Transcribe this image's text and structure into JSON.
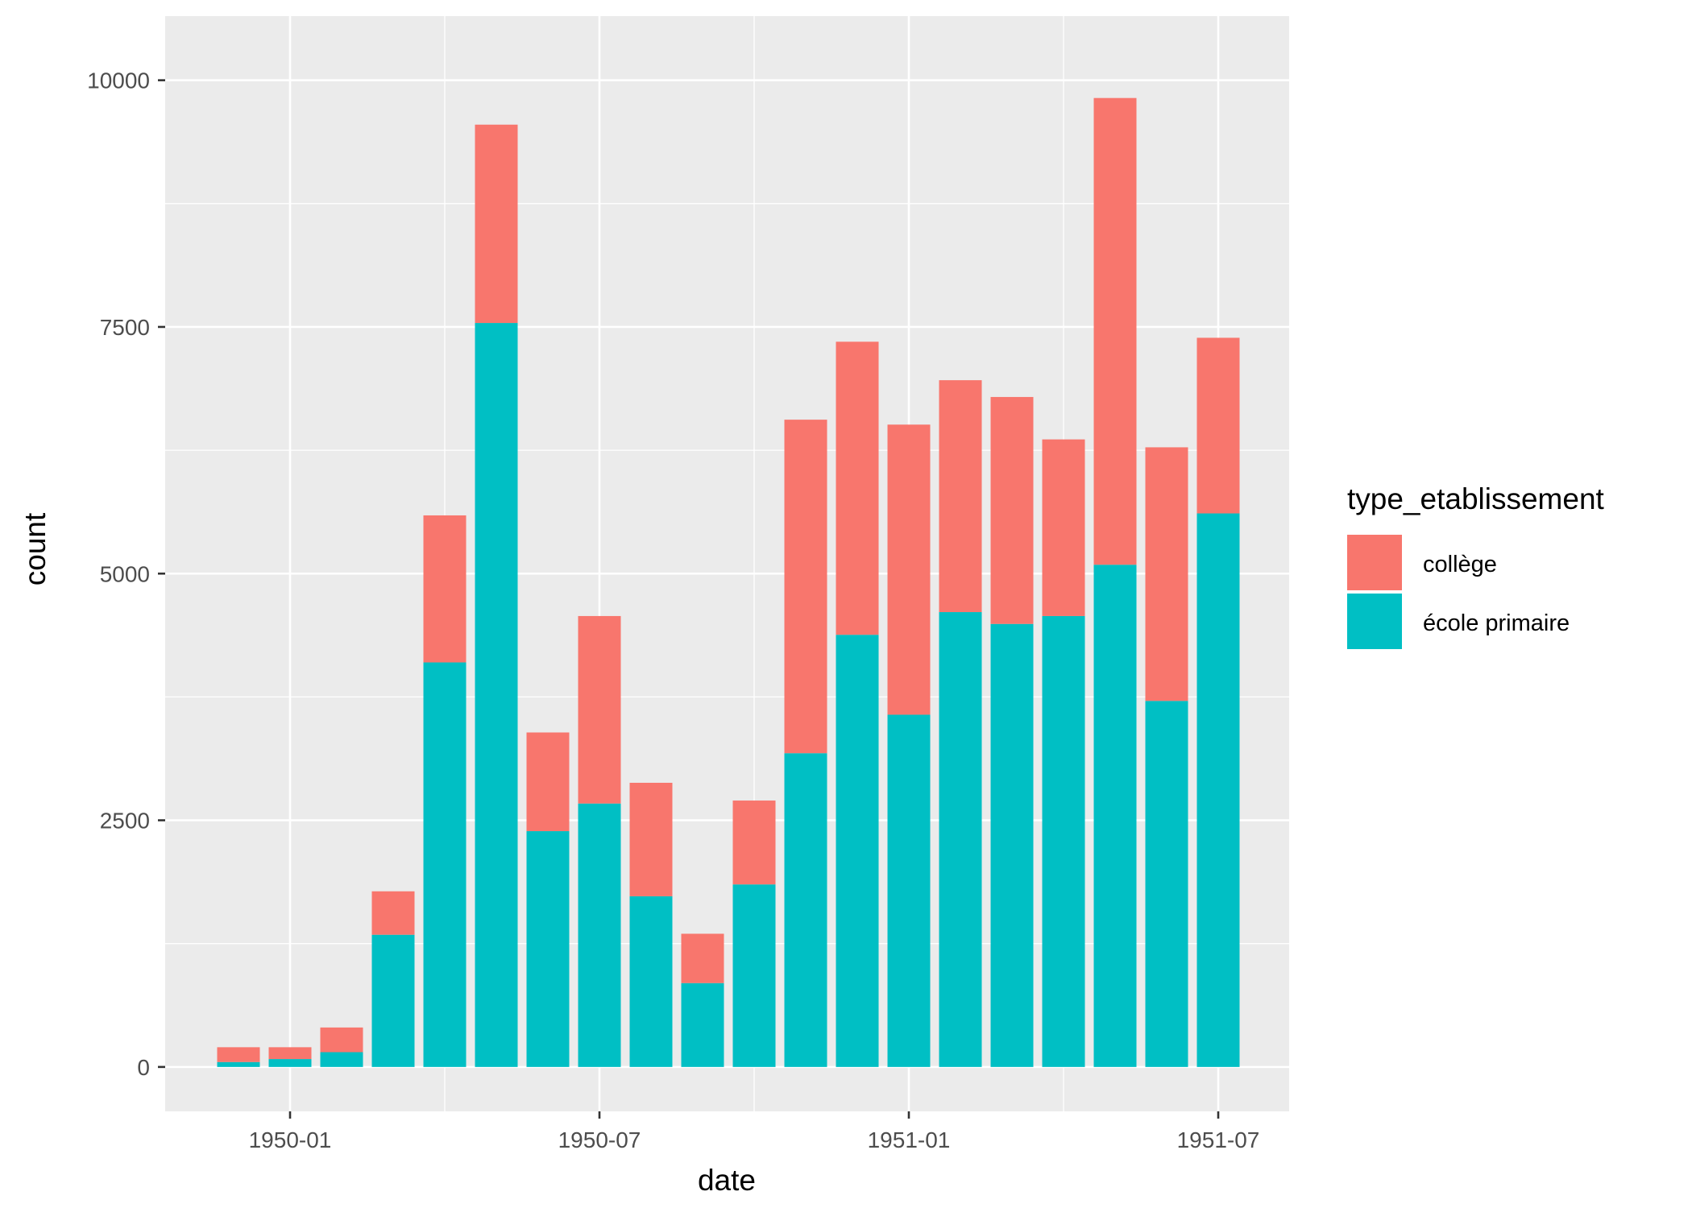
{
  "chart_data": {
    "type": "bar",
    "stacked": true,
    "xlabel": "date",
    "ylabel": "count",
    "x_tick_labels": [
      "1950-01",
      "1950-07",
      "1951-01",
      "1951-07"
    ],
    "y_ticks": [
      0,
      2500,
      5000,
      7500,
      10000
    ],
    "y_tick_labels": [
      "0",
      "2500",
      "5000",
      "7500",
      "10000"
    ],
    "ylim": [
      -450,
      10650
    ],
    "categories": [
      "1949-12",
      "1950-01",
      "1950-02",
      "1950-03",
      "1950-04",
      "1950-05",
      "1950-06",
      "1950-07",
      "1950-08",
      "1950-09",
      "1950-10",
      "1950-11",
      "1950-12",
      "1951-01",
      "1951-02",
      "1951-03",
      "1951-04",
      "1951-05",
      "1951-06",
      "1951-07"
    ],
    "series": [
      {
        "name": "école primaire",
        "color": "#00BFC4",
        "values": [
          50,
          80,
          150,
          1340,
          4100,
          7540,
          2390,
          2670,
          1730,
          850,
          1850,
          3180,
          4380,
          3570,
          4610,
          4490,
          4570,
          5090,
          3710,
          5610
        ]
      },
      {
        "name": "collège",
        "color": "#F8766D",
        "values": [
          150,
          120,
          250,
          440,
          1490,
          2010,
          1000,
          1900,
          1150,
          500,
          850,
          3380,
          2970,
          2940,
          2350,
          2300,
          1790,
          4730,
          2570,
          1780
        ]
      }
    ],
    "grid": true,
    "legend": {
      "title": "type_etablissement",
      "position": "right",
      "items": [
        {
          "label": "collège",
          "color": "#F8766D"
        },
        {
          "label": "école primaire",
          "color": "#00BFC4"
        }
      ]
    },
    "panel_color": "#EBEBEB",
    "grid_color": "#FFFFFF"
  }
}
